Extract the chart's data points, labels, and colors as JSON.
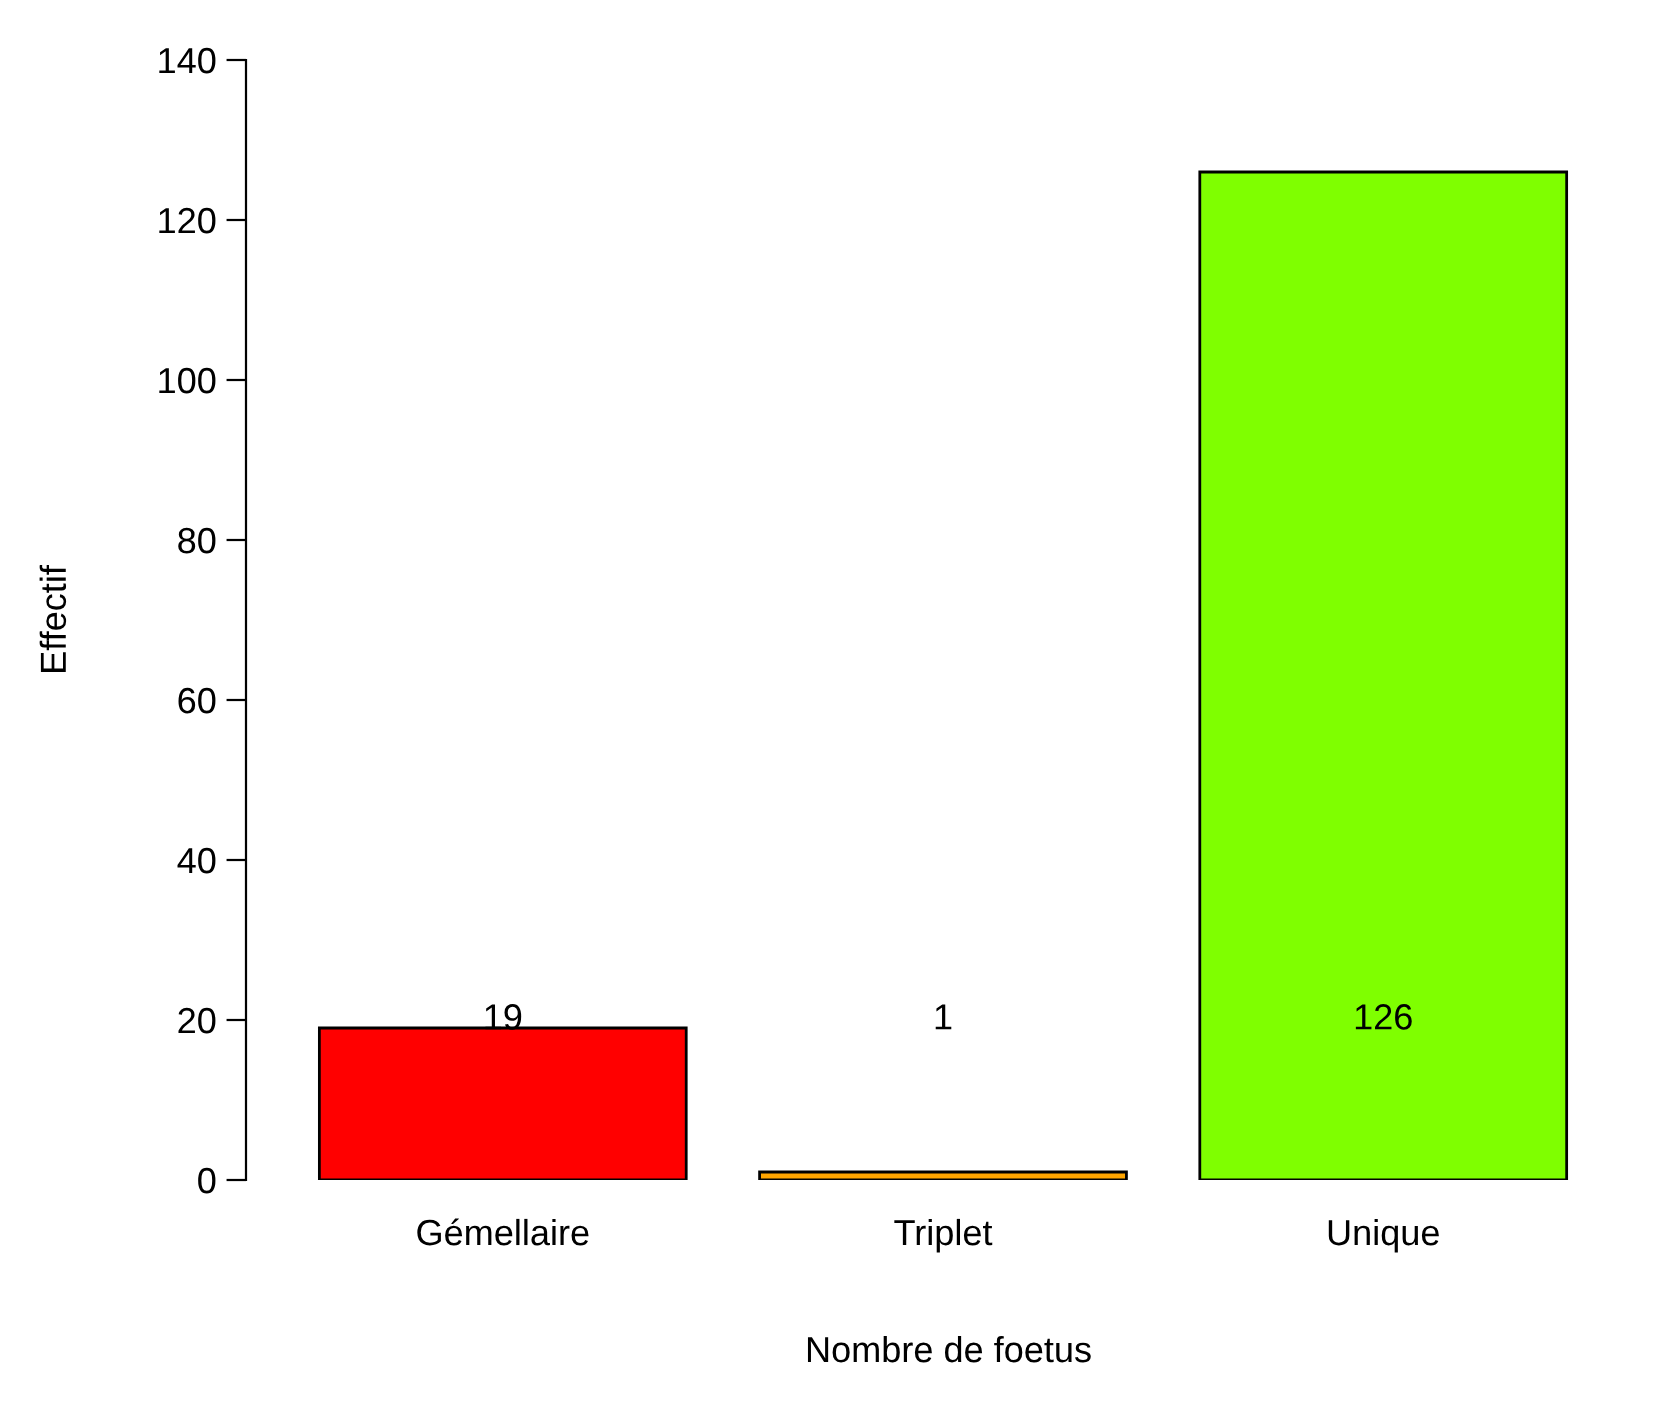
{
  "chart_data": {
    "type": "bar",
    "xlabel": "Nombre de foetus",
    "ylabel": "Effectif",
    "categories": [
      "Gémellaire",
      "Triplet",
      "Unique"
    ],
    "values": [
      19,
      1,
      126
    ],
    "colors": [
      "#ff0000",
      "#ffa500",
      "#7fff00"
    ],
    "ylim": [
      0,
      140
    ],
    "yticks": [
      0,
      20,
      40,
      60,
      80,
      100,
      120,
      140
    ],
    "grid": false,
    "annotations": [
      "19",
      "1",
      "126"
    ]
  }
}
